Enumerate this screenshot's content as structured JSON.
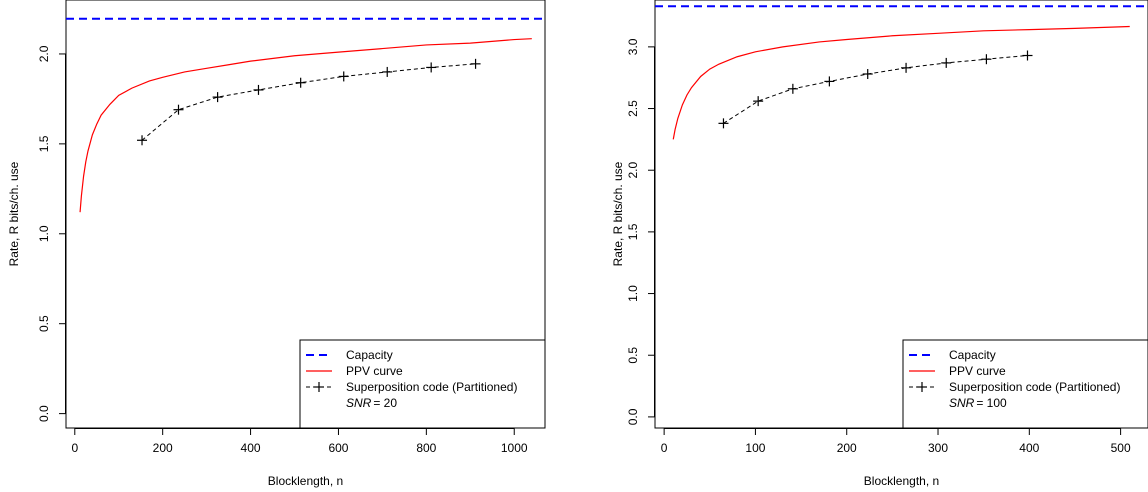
{
  "chart_data": [
    {
      "type": "line",
      "xlabel": "Blocklength, n",
      "ylabel": "Rate, R bits/ch. use",
      "xlim": [
        -20,
        1070
      ],
      "ylim": [
        -0.08,
        2.3
      ],
      "x_ticks": [
        "0",
        "200",
        "400",
        "600",
        "800",
        "1000"
      ],
      "y_ticks": [
        "0.0",
        "0.5",
        "1.0",
        "1.5",
        "2.0"
      ],
      "capacity": 2.196,
      "snr_symbol": "SNR",
      "snr_value": "= 20",
      "series": [
        {
          "name": "Capacity",
          "color": "#0000ff",
          "style": "dashed",
          "y": 2.196
        },
        {
          "name": "PPV curve",
          "color": "#ff0000",
          "style": "solid",
          "x": [
            12,
            15,
            20,
            25,
            30,
            40,
            50,
            60,
            80,
            100,
            130,
            170,
            200,
            250,
            300,
            350,
            400,
            500,
            600,
            700,
            800,
            900,
            1000,
            1040
          ],
          "y": [
            1.12,
            1.21,
            1.32,
            1.4,
            1.46,
            1.55,
            1.61,
            1.66,
            1.72,
            1.77,
            1.81,
            1.85,
            1.87,
            1.9,
            1.92,
            1.94,
            1.96,
            1.99,
            2.01,
            2.03,
            2.05,
            2.06,
            2.08,
            2.085
          ]
        },
        {
          "name": "Superposition code (Partitioned)",
          "color": "#000000",
          "style": "dashed-marker",
          "x": [
            153,
            236,
            325,
            418,
            514,
            612,
            711,
            811,
            912
          ],
          "y": [
            1.52,
            1.69,
            1.76,
            1.8,
            1.84,
            1.875,
            1.9,
            1.925,
            1.945
          ]
        }
      ],
      "legend_position": "bottom-right"
    },
    {
      "type": "line",
      "xlabel": "Blocklength, n",
      "ylabel": "Rate, R bits/ch. use",
      "xlim": [
        -10,
        530
      ],
      "ylim": [
        -0.09,
        3.38
      ],
      "x_ticks": [
        "0",
        "100",
        "200",
        "300",
        "400",
        "500"
      ],
      "y_ticks": [
        "0.0",
        "0.5",
        "1.0",
        "1.5",
        "2.0",
        "2.5",
        "3.0"
      ],
      "capacity": 3.329,
      "snr_symbol": "SNR",
      "snr_value": "= 100",
      "series": [
        {
          "name": "Capacity",
          "color": "#0000ff",
          "style": "dashed",
          "y": 3.329
        },
        {
          "name": "PPV curve",
          "color": "#ff0000",
          "style": "solid",
          "x": [
            10,
            12,
            15,
            20,
            25,
            30,
            40,
            50,
            60,
            80,
            100,
            130,
            170,
            200,
            250,
            300,
            350,
            400,
            450,
            510
          ],
          "y": [
            2.25,
            2.33,
            2.42,
            2.53,
            2.61,
            2.67,
            2.76,
            2.82,
            2.86,
            2.92,
            2.96,
            3.0,
            3.04,
            3.06,
            3.09,
            3.11,
            3.13,
            3.14,
            3.15,
            3.165
          ]
        },
        {
          "name": "Superposition code (Partitioned)",
          "color": "#000000",
          "style": "dashed-marker",
          "x": [
            65,
            103,
            141,
            181,
            223,
            265,
            309,
            353,
            398
          ],
          "y": [
            2.38,
            2.56,
            2.66,
            2.72,
            2.78,
            2.83,
            2.87,
            2.9,
            2.93
          ]
        }
      ],
      "legend_position": "bottom-right"
    }
  ]
}
